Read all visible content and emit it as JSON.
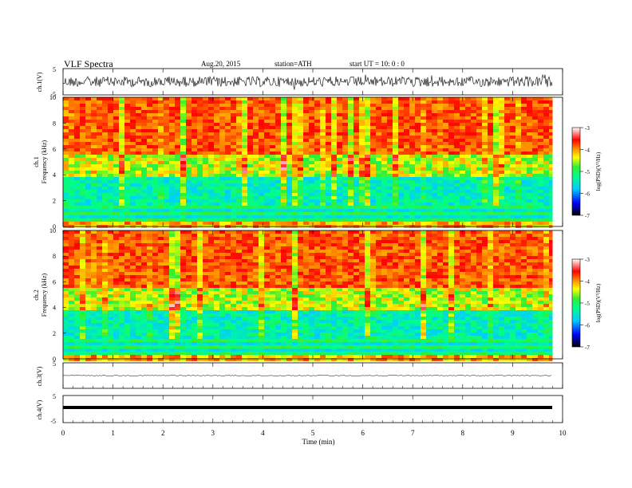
{
  "header": {
    "title": "VLF  Spectra",
    "date": "Aug.20, 2015",
    "station": "station=ATH",
    "start": "start  UT  =   10: 0  : 0"
  },
  "colors": {
    "waveform": "#000000",
    "colormap": [
      "#000000",
      "#0000ff",
      "#00ccff",
      "#00ff88",
      "#33ee33",
      "#ffff00",
      "#ff8800",
      "#ff0000",
      "#ffffff"
    ]
  },
  "chart_data": [
    {
      "type": "line",
      "id": "ch1",
      "ylabel": "ch.1(V)",
      "yticks": [
        "5",
        "-5"
      ],
      "ylim": [
        -5,
        5
      ],
      "description": "noisy broadband waveform roughly between -2.5 and 2.5 V"
    },
    {
      "type": "heatmap",
      "id": "ch1-spec",
      "ylabel_top": "ch.1",
      "ylabel": "Frequency  (kHz)",
      "yticks": [
        "0",
        "2",
        "4",
        "6",
        "8",
        "10"
      ],
      "ylim": [
        0,
        10
      ],
      "colorbar": {
        "label": "log(PSD)(V²/Hz)",
        "ticks": [
          "-3",
          "-4",
          "-5",
          "-6",
          "-7"
        ],
        "range": [
          -7,
          -3
        ]
      }
    },
    {
      "type": "heatmap",
      "id": "ch2-spec",
      "ylabel_top": "ch.2",
      "ylabel": "Frequency  (kHz)",
      "yticks": [
        "0",
        "2",
        "4",
        "6",
        "8",
        "10"
      ],
      "ylim": [
        0,
        10
      ],
      "colorbar": {
        "label": "log(PSD)(V²/Hz)",
        "ticks": [
          "-3",
          "-4",
          "-5",
          "-6",
          "-7"
        ],
        "range": [
          -7,
          -3
        ]
      }
    },
    {
      "type": "line",
      "id": "ch3",
      "ylabel": "ch.3(V)",
      "yticks": [
        "5",
        "-5"
      ],
      "ylim": [
        -5,
        5
      ],
      "description": "nearly flat trace near 0 V"
    },
    {
      "type": "line",
      "id": "ch4",
      "ylabel": "ch.4(V)",
      "yticks": [
        "5",
        "-5"
      ],
      "ylim": [
        -5,
        5
      ],
      "description": "thick constant line near 0 V"
    }
  ],
  "xaxis": {
    "label": "Time  (min)",
    "ticks": [
      "0",
      "1",
      "2",
      "3",
      "4",
      "5",
      "6",
      "7",
      "8",
      "9",
      "10"
    ],
    "xlim": [
      0,
      10
    ],
    "data_end": 9.8
  }
}
